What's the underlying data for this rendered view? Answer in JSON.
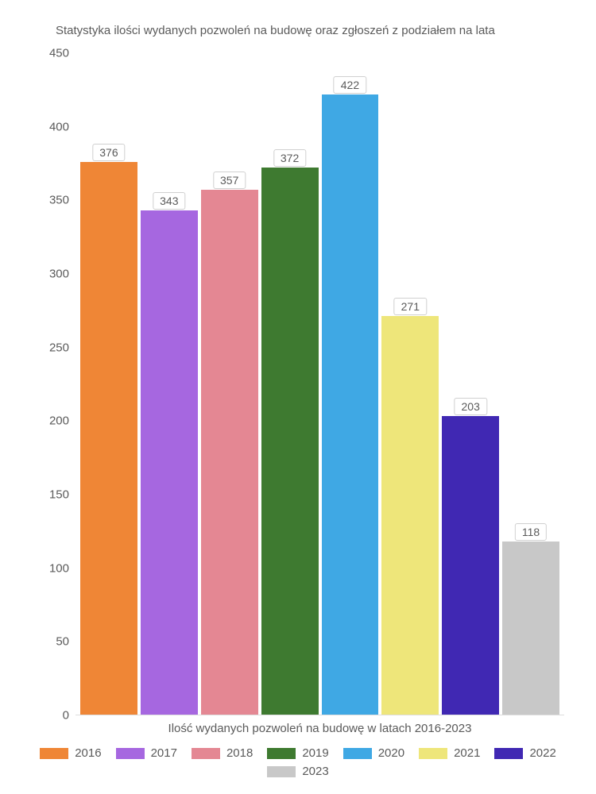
{
  "chart": {
    "type": "bar",
    "title": "Statystyka ilości wydanych pozwoleń na budowę oraz zgłoszeń z podziałem na lata",
    "xlabel": "Ilość wydanych pozwoleń na budowę w latach 2016-2023",
    "ylim_max": 450,
    "yticks": [
      0,
      50,
      100,
      150,
      200,
      250,
      300,
      350,
      400,
      450
    ],
    "background_color": "#ffffff",
    "text_color": "#5a5a5a",
    "label_bg": "#ffffff",
    "label_border": "#d0d0d0",
    "title_fontsize": 15,
    "axis_fontsize": 15,
    "label_fontsize": 14,
    "bars": [
      {
        "year": "2016",
        "value": 376,
        "color": "#ef8636"
      },
      {
        "year": "2017",
        "value": 343,
        "color": "#a667e0"
      },
      {
        "year": "2018",
        "value": 357,
        "color": "#e48793"
      },
      {
        "year": "2019",
        "value": 372,
        "color": "#3e7a30"
      },
      {
        "year": "2020",
        "value": 422,
        "color": "#3fa8e4"
      },
      {
        "year": "2021",
        "value": 271,
        "color": "#eee67a"
      },
      {
        "year": "2022",
        "value": 203,
        "color": "#4028b3"
      },
      {
        "year": "2023",
        "value": 118,
        "color": "#c8c8c8"
      }
    ]
  }
}
